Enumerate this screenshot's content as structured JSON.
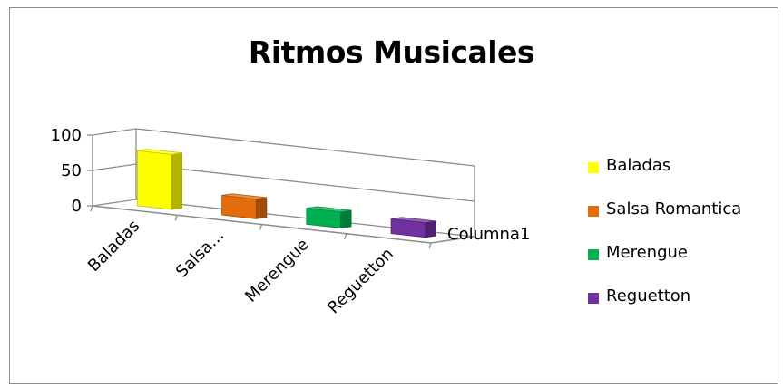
{
  "chart_data": {
    "type": "bar",
    "title": "Ritmos Musicales",
    "categories": [
      "Baladas",
      "Salsa Romantica",
      "Merengue",
      "Reguetton"
    ],
    "category_tick_labels": [
      "Baladas",
      "Salsa…",
      "Merengue",
      "Reguetton"
    ],
    "series": [
      {
        "name": "Columna1",
        "values": [
          65,
          15,
          10,
          8
        ]
      }
    ],
    "point_colors": [
      "#ffff00",
      "#e46c0a",
      "#00b050",
      "#7030a0"
    ],
    "ylim": [
      0,
      100
    ],
    "yticks": [
      "0",
      "50",
      "100"
    ],
    "grid": true,
    "legend": {
      "position": "right",
      "entries": [
        "Baladas",
        "Salsa Romantica",
        "Merengue",
        "Reguetton"
      ]
    },
    "depth_axis_label": "Columna1",
    "style": "3d-column"
  }
}
